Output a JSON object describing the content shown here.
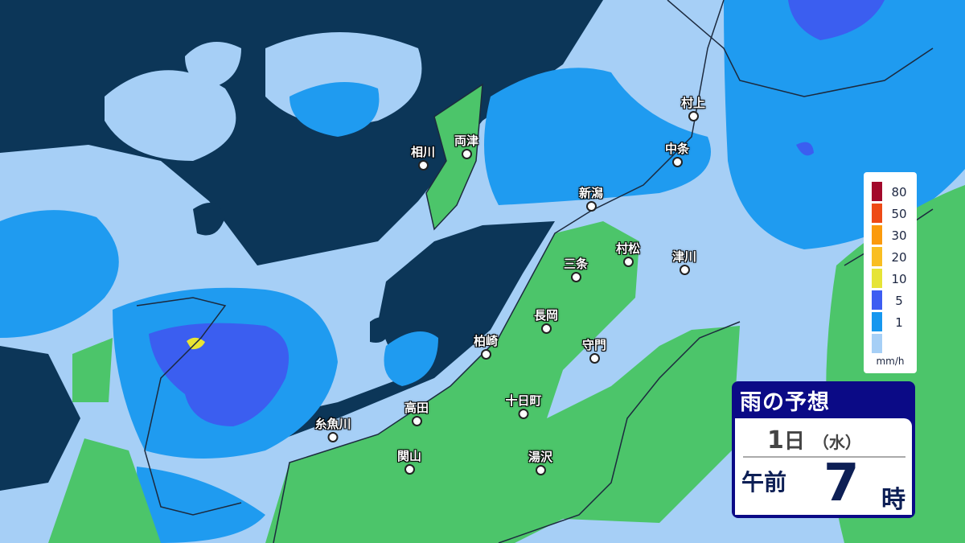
{
  "map": {
    "colors": {
      "sea_no_rain": "#0c3658",
      "rain_lt1": "#a6cff6",
      "rain_1_5": "#1f9bf0",
      "rain_5_10": "#3b5ef0",
      "rain_10_20": "#e8e433",
      "land_no_rain": "#4cc56a"
    },
    "cities": [
      "村上",
      "中条",
      "新潟",
      "三条",
      "村松",
      "津川",
      "長岡",
      "守門",
      "柏崎",
      "十日町",
      "高田",
      "糸魚川",
      "関山",
      "湯沢",
      "相川",
      "両津"
    ]
  },
  "legend": {
    "items": [
      {
        "label": "80",
        "color": "#a3092b"
      },
      {
        "label": "50",
        "color": "#ee4a16"
      },
      {
        "label": "30",
        "color": "#fb9a0c"
      },
      {
        "label": "20",
        "color": "#f9be22"
      },
      {
        "label": "10",
        "color": "#e6e436"
      },
      {
        "label": "5",
        "color": "#3d5df2"
      },
      {
        "label": "1",
        "color": "#1697ef"
      },
      {
        "label": "",
        "color": "#a6cff6"
      }
    ],
    "unit": "mm/h"
  },
  "info": {
    "title": "雨の予想",
    "day": "1",
    "day_suffix": "日",
    "weekday": "（水）",
    "ampm": "午前",
    "hour": "7",
    "hour_suffix": "時"
  }
}
